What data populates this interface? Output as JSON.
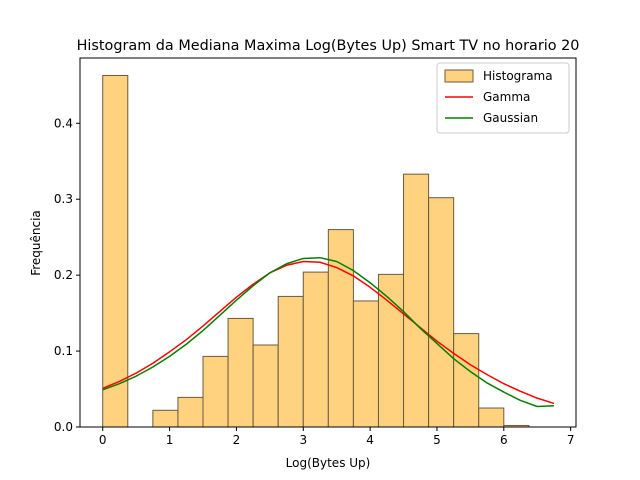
{
  "chart_data": {
    "type": "bar",
    "title": "Histogram da Mediana Maxima Log(Bytes Up) Smart TV no horario 20",
    "xlabel": "Log(Bytes Up)",
    "ylabel": "Frequência",
    "xlim": [
      -0.34,
      7.08
    ],
    "ylim": [
      0,
      0.486
    ],
    "xticks": [
      "0",
      "1",
      "2",
      "3",
      "4",
      "5",
      "6",
      "7"
    ],
    "yticks": [
      "0.0",
      "0.1",
      "0.2",
      "0.3",
      "0.4"
    ],
    "grid": false,
    "legend_position": "top-right",
    "bins": {
      "edges": [
        0.0,
        0.375,
        0.75,
        1.125,
        1.5,
        1.875,
        2.25,
        2.625,
        3.0,
        3.375,
        3.75,
        4.125,
        4.5,
        4.875,
        5.25,
        5.625,
        6.0,
        6.375
      ],
      "values": [
        0.463,
        0.0,
        0.022,
        0.039,
        0.093,
        0.143,
        0.108,
        0.172,
        0.204,
        0.26,
        0.166,
        0.201,
        0.333,
        0.302,
        0.123,
        0.025,
        0.002
      ]
    },
    "series": [
      {
        "name": "Histograma",
        "kind": "bar",
        "fill": "#ffd280",
        "edge": "#6b5a3c"
      },
      {
        "name": "Gamma",
        "kind": "line",
        "color": "#ff0000",
        "x": [
          0.0,
          0.25,
          0.5,
          0.75,
          1.0,
          1.25,
          1.5,
          1.75,
          2.0,
          2.25,
          2.5,
          2.75,
          3.0,
          3.25,
          3.5,
          3.75,
          4.0,
          4.25,
          4.5,
          4.75,
          5.0,
          5.25,
          5.5,
          5.75,
          6.0,
          6.25,
          6.5,
          6.75
        ],
        "y": [
          0.051,
          0.06,
          0.071,
          0.084,
          0.099,
          0.115,
          0.133,
          0.152,
          0.171,
          0.188,
          0.203,
          0.213,
          0.218,
          0.217,
          0.21,
          0.199,
          0.184,
          0.167,
          0.149,
          0.131,
          0.113,
          0.097,
          0.082,
          0.069,
          0.057,
          0.047,
          0.038,
          0.031
        ]
      },
      {
        "name": "Gaussian",
        "kind": "line",
        "color": "#008000",
        "x": [
          0.0,
          0.25,
          0.5,
          0.75,
          1.0,
          1.25,
          1.5,
          1.75,
          2.0,
          2.25,
          2.5,
          2.75,
          3.0,
          3.25,
          3.5,
          3.75,
          4.0,
          4.25,
          4.5,
          4.75,
          5.0,
          5.25,
          5.5,
          5.75,
          6.0,
          6.25,
          6.5,
          6.75
        ],
        "y": [
          0.049,
          0.057,
          0.067,
          0.079,
          0.093,
          0.109,
          0.127,
          0.147,
          0.167,
          0.186,
          0.203,
          0.215,
          0.222,
          0.223,
          0.218,
          0.206,
          0.19,
          0.172,
          0.152,
          0.13,
          0.11,
          0.09,
          0.073,
          0.058,
          0.046,
          0.035,
          0.027,
          0.028
        ]
      }
    ]
  }
}
